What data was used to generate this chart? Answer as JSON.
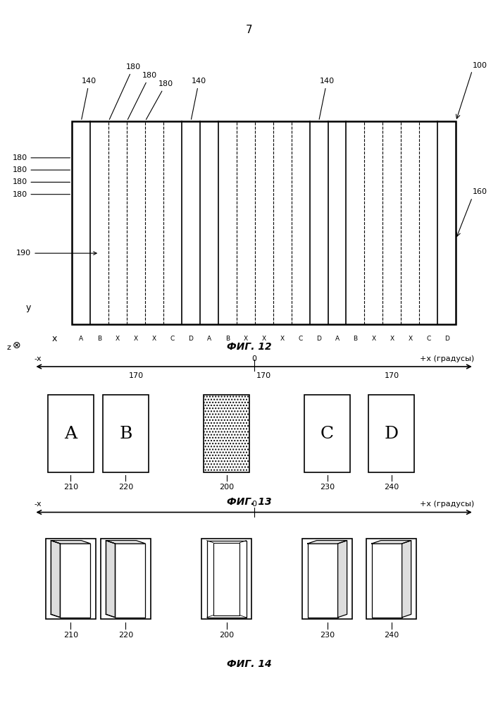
{
  "page_number": "7",
  "fig12": {
    "title": "ФИГ. 12",
    "label_100": "100",
    "label_160": "160",
    "label_190": "190",
    "label_140": "140",
    "label_180": "180",
    "label_170": "170",
    "strip_labels": [
      "A",
      "B",
      "X",
      "X",
      "X",
      "C",
      "D",
      "A",
      "B",
      "X",
      "X",
      "X",
      "C",
      "D",
      "A",
      "B",
      "X",
      "X",
      "X",
      "C",
      "D"
    ],
    "groups": [
      "170",
      "170",
      "170"
    ],
    "axis_labels": [
      "y",
      "x",
      "z"
    ]
  },
  "fig13": {
    "title": "ФИГ. 13",
    "axis_label_left": "-x",
    "axis_label_center": "0",
    "axis_label_right": "+x (градусы)",
    "boxes": [
      {
        "label": "A",
        "num": "210",
        "type": "letter"
      },
      {
        "label": "B",
        "num": "220",
        "type": "letter"
      },
      {
        "label": "",
        "num": "200",
        "type": "dotted"
      },
      {
        "label": "C",
        "num": "230",
        "type": "letter"
      },
      {
        "label": "D",
        "num": "240",
        "type": "letter"
      }
    ]
  },
  "fig14": {
    "title": "ФИГ. 14",
    "axis_label_left": "-x",
    "axis_label_center": "0",
    "axis_label_right": "+x (градусы)",
    "boxes": [
      {
        "label": "",
        "num": "210",
        "type": "cube_left"
      },
      {
        "label": "",
        "num": "220",
        "type": "cube_left_small"
      },
      {
        "label": "",
        "num": "200",
        "type": "cube_front"
      },
      {
        "label": "",
        "num": "230",
        "type": "cube_right_small"
      },
      {
        "label": "",
        "num": "240",
        "type": "cube_right"
      }
    ]
  },
  "bg_color": "#ffffff",
  "line_color": "#000000",
  "gray_color": "#888888",
  "light_gray": "#cccccc"
}
